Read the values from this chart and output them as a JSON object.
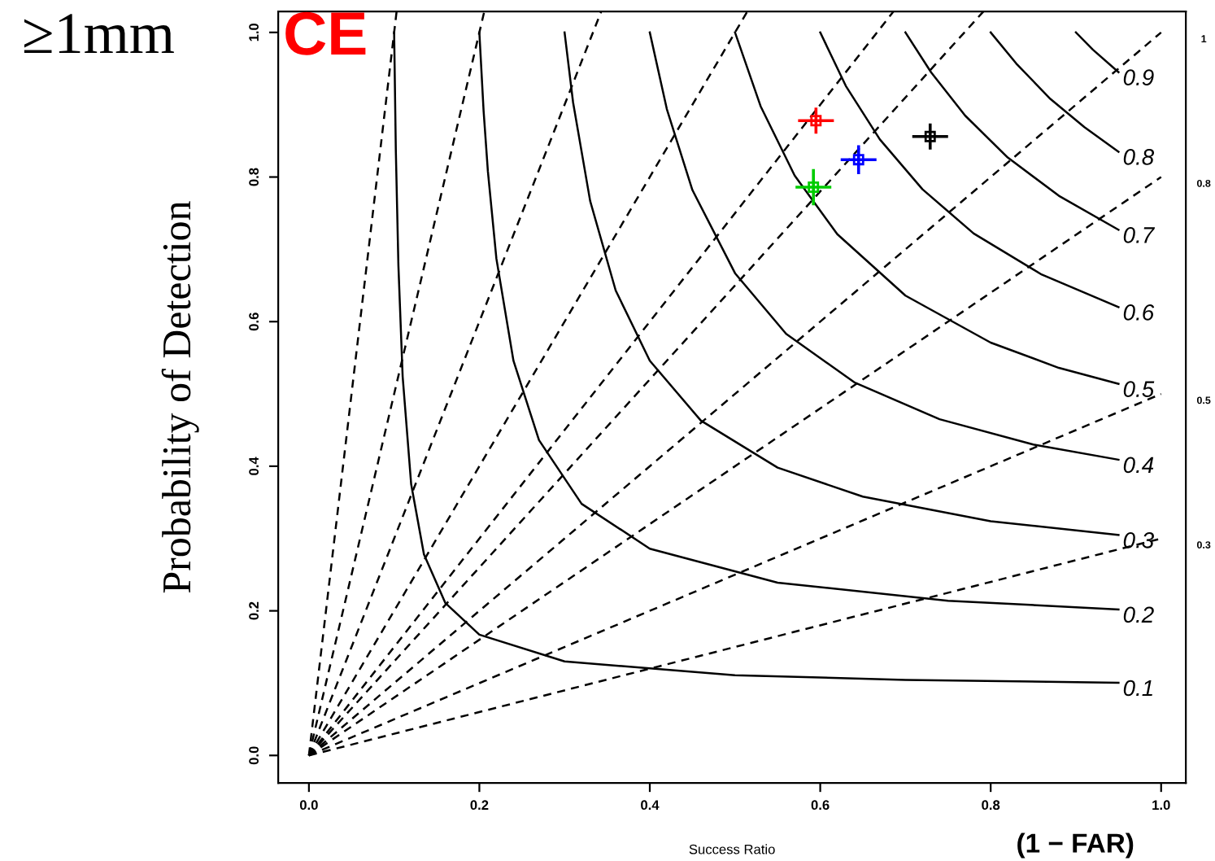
{
  "chart_data": {
    "type": "line",
    "xlabel": "Success Ratio",
    "ylabel": "Probability of Detection",
    "annotations": [
      "≥1mm",
      "CE",
      "(1 − FAR)"
    ],
    "xlim": [
      -0.036,
      1.029
    ],
    "ylim": [
      -0.038,
      1.029
    ],
    "xticks": [
      {
        "value": 0,
        "label": "0.0"
      },
      0.2,
      0.4,
      0.6,
      0.8,
      {
        "value": 1,
        "label": "1.0"
      }
    ],
    "yticks": [
      {
        "value": 0,
        "label": "0.0"
      },
      0.2,
      0.4,
      0.6,
      0.8,
      {
        "value": 1,
        "label": "1.0"
      }
    ],
    "grid": false,
    "legend": false,
    "series": [
      {
        "name": "0.1",
        "color": "#000000",
        "line_style": "solid",
        "marker": "none",
        "x": [
          0.1,
          0.102,
          0.105,
          0.11,
          0.12,
          0.135,
          0.16,
          0.2,
          0.3,
          0.5,
          0.7,
          0.95
        ],
        "values": [
          1,
          0.836,
          0.678,
          0.524,
          0.375,
          0.278,
          0.211,
          0.167,
          0.13,
          0.111,
          0.1045,
          0.1005
        ]
      },
      {
        "name": "0.2",
        "color": "#000000",
        "line_style": "solid",
        "marker": "none",
        "x": [
          0.2,
          0.205,
          0.21,
          0.22,
          0.24,
          0.27,
          0.32,
          0.4,
          0.55,
          0.75,
          0.95
        ],
        "values": [
          1,
          0.891,
          0.808,
          0.687,
          0.546,
          0.436,
          0.348,
          0.286,
          0.239,
          0.214,
          0.202
        ]
      },
      {
        "name": "0.3",
        "color": "#000000",
        "line_style": "solid",
        "marker": "none",
        "x": [
          0.3,
          0.31,
          0.33,
          0.36,
          0.4,
          0.46,
          0.55,
          0.65,
          0.8,
          0.95
        ],
        "values": [
          1,
          0.903,
          0.767,
          0.643,
          0.546,
          0.463,
          0.398,
          0.358,
          0.324,
          0.305
        ]
      },
      {
        "name": "0.4",
        "color": "#000000",
        "line_style": "solid",
        "marker": "none",
        "x": [
          0.4,
          0.42,
          0.45,
          0.5,
          0.56,
          0.64,
          0.74,
          0.85,
          0.95
        ],
        "values": [
          1,
          0.894,
          0.782,
          0.667,
          0.583,
          0.516,
          0.465,
          0.43,
          0.409
        ]
      },
      {
        "name": "0.5",
        "color": "#000000",
        "line_style": "solid",
        "marker": "none",
        "x": [
          0.5,
          0.53,
          0.57,
          0.62,
          0.7,
          0.8,
          0.88,
          0.95
        ],
        "values": [
          1,
          0.898,
          0.802,
          0.721,
          0.636,
          0.571,
          0.536,
          0.514
        ]
      },
      {
        "name": "0.6",
        "color": "#000000",
        "line_style": "solid",
        "marker": "none",
        "x": [
          0.6,
          0.63,
          0.67,
          0.72,
          0.78,
          0.86,
          0.95
        ],
        "values": [
          1,
          0.926,
          0.852,
          0.783,
          0.722,
          0.665,
          0.62
        ]
      },
      {
        "name": "0.7",
        "color": "#000000",
        "line_style": "solid",
        "marker": "none",
        "x": [
          0.7,
          0.73,
          0.77,
          0.82,
          0.88,
          0.95
        ],
        "values": [
          1,
          0.945,
          0.885,
          0.827,
          0.774,
          0.727
        ]
      },
      {
        "name": "0.8",
        "color": "#000000",
        "line_style": "solid",
        "marker": "none",
        "x": [
          0.8,
          0.83,
          0.87,
          0.91,
          0.95
        ],
        "values": [
          1,
          0.957,
          0.908,
          0.869,
          0.835
        ]
      },
      {
        "name": "0.9",
        "color": "#000000",
        "line_style": "solid",
        "marker": "none",
        "x": [
          0.9,
          0.92,
          0.95
        ],
        "values": [
          1,
          0.976,
          0.945
        ]
      },
      {
        "name": "0.3",
        "color": "#000000",
        "line_style": "dashed",
        "marker": "none",
        "x": [
          0,
          1
        ],
        "values": [
          0,
          0.3
        ]
      },
      {
        "name": "0.5",
        "color": "#000000",
        "line_style": "dashed",
        "marker": "none",
        "x": [
          0,
          1
        ],
        "values": [
          0,
          0.5
        ]
      },
      {
        "name": "0.8",
        "color": "#000000",
        "line_style": "dashed",
        "marker": "none",
        "x": [
          0,
          1
        ],
        "values": [
          0,
          0.8
        ]
      },
      {
        "name": "1",
        "color": "#000000",
        "line_style": "dashed",
        "marker": "none",
        "x": [
          0,
          1
        ],
        "values": [
          0,
          1
        ]
      },
      {
        "color": "#000000",
        "line_style": "dashed",
        "marker": "none",
        "x": [
          0,
          0.7915
        ],
        "values": [
          0,
          1.029
        ]
      },
      {
        "color": "#000000",
        "line_style": "dashed",
        "marker": "none",
        "x": [
          0,
          0.686
        ],
        "values": [
          0,
          1.029
        ]
      },
      {
        "color": "#000000",
        "line_style": "dashed",
        "marker": "none",
        "x": [
          0,
          0.5145
        ],
        "values": [
          0,
          1.029
        ]
      },
      {
        "color": "#000000",
        "line_style": "dashed",
        "marker": "none",
        "x": [
          0,
          0.343
        ],
        "values": [
          0,
          1.029
        ]
      },
      {
        "color": "#000000",
        "line_style": "dashed",
        "marker": "none",
        "x": [
          0,
          0.2058
        ],
        "values": [
          0,
          1.029
        ]
      },
      {
        "color": "#000000",
        "line_style": "dashed",
        "marker": "none",
        "x": [
          0,
          0.1029
        ],
        "values": [
          0,
          1.029
        ]
      },
      {
        "type": "scatter",
        "color": "#ff0000",
        "marker": "square",
        "x": [
          0.595
        ],
        "values": [
          0.878
        ],
        "errors": [
          0.018
        ],
        "xerrors": [
          0.021
        ]
      },
      {
        "type": "scatter",
        "color": "#00cc00",
        "marker": "square",
        "x": [
          0.592
        ],
        "values": [
          0.786
        ],
        "errors": [
          0.025
        ],
        "xerrors": [
          0.021
        ]
      },
      {
        "type": "scatter",
        "color": "#0000ff",
        "marker": "square",
        "x": [
          0.645
        ],
        "values": [
          0.824
        ],
        "errors": [
          0.02
        ],
        "xerrors": [
          0.021
        ]
      },
      {
        "type": "scatter",
        "color": "#000000",
        "marker": "square",
        "x": [
          0.729
        ],
        "values": [
          0.856
        ],
        "errors": [
          0.018
        ],
        "xerrors": [
          0.021
        ]
      }
    ]
  }
}
